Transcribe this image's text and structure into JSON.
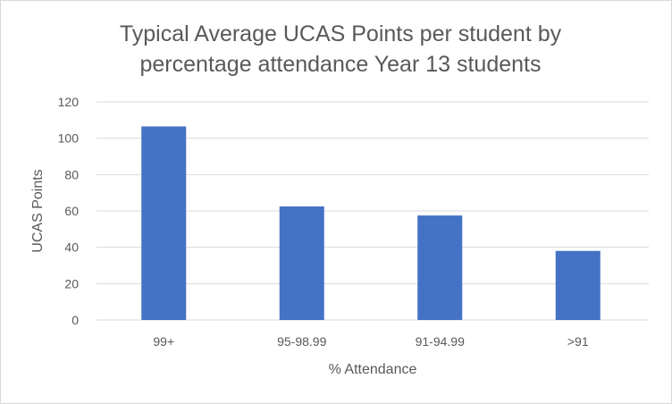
{
  "chart_data": {
    "type": "bar",
    "title_lines": [
      "Typical Average UCAS Points per student by",
      "percentage attendance Year 13 students"
    ],
    "xlabel": "% Attendance",
    "ylabel": "UCAS Points",
    "categories": [
      "99+",
      "95-98.99",
      "91-94.99",
      ">91"
    ],
    "values": [
      106.5,
      62.5,
      57.5,
      38
    ],
    "ylim": [
      0,
      120
    ],
    "yticks": [
      0,
      20,
      40,
      60,
      80,
      100,
      120
    ],
    "grid": true,
    "legend": "none",
    "bar_color": "#4472c4",
    "grid_color": "#d9d9d9",
    "text_color": "#595959"
  }
}
